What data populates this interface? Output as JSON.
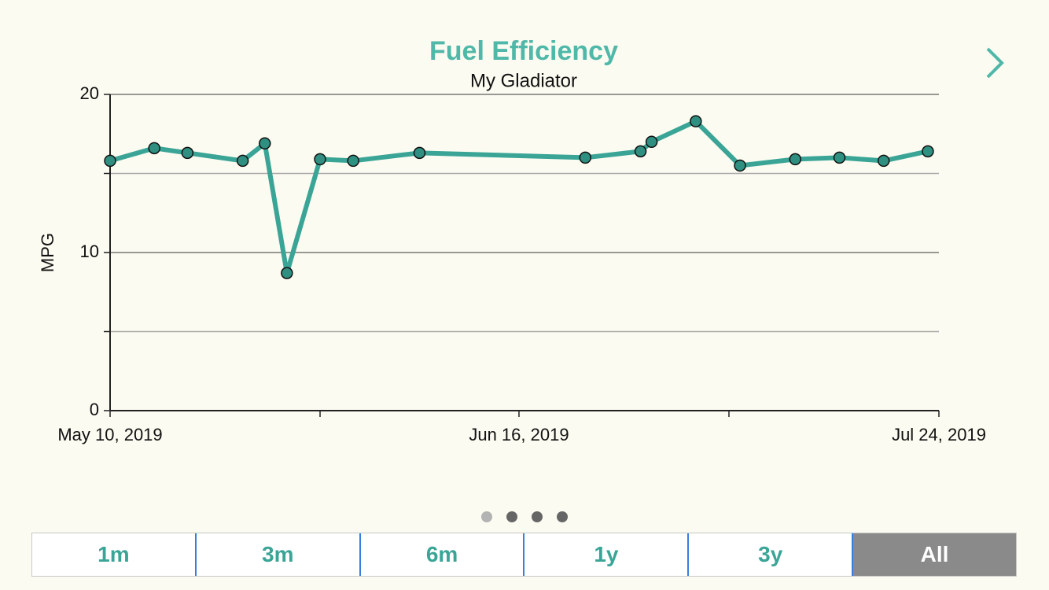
{
  "chart_data": {
    "type": "line",
    "title": "Fuel Efficiency",
    "subtitle": "My Gladiator",
    "ylabel": "MPG",
    "x": [
      "2019-05-10",
      "2019-05-14",
      "2019-05-17",
      "2019-05-22",
      "2019-05-24",
      "2019-05-26",
      "2019-05-29",
      "2019-06-01",
      "2019-06-07",
      "2019-06-22",
      "2019-06-27",
      "2019-06-28",
      "2019-07-02",
      "2019-07-06",
      "2019-07-11",
      "2019-07-15",
      "2019-07-19",
      "2019-07-23"
    ],
    "values": [
      15.8,
      16.6,
      16.3,
      15.8,
      16.9,
      8.7,
      15.9,
      15.8,
      16.3,
      16.0,
      16.4,
      17.0,
      18.3,
      15.5,
      15.9,
      16.0,
      15.8,
      16.4
    ],
    "color": "#3aa596",
    "marker_color": "#2f8f80",
    "xlim": [
      "2019-05-10",
      "2019-07-24"
    ],
    "xticks": [
      {
        "value": "2019-05-10",
        "label": "May 10, 2019"
      },
      {
        "value": "2019-06-16",
        "label": "Jun 16, 2019"
      },
      {
        "value": "2019-07-24",
        "label": "Jul 24, 2019"
      }
    ],
    "xminorticks": [
      "2019-05-29",
      "2019-07-05"
    ],
    "ylim": [
      0,
      20
    ],
    "yticks": [
      0,
      10,
      20
    ],
    "yminorticks": [
      5,
      15
    ],
    "grid": true
  },
  "pager": {
    "pages": 4,
    "current": 0
  },
  "range_buttons": {
    "options": [
      "1m",
      "3m",
      "6m",
      "1y",
      "3y",
      "All"
    ],
    "selected": 5
  }
}
